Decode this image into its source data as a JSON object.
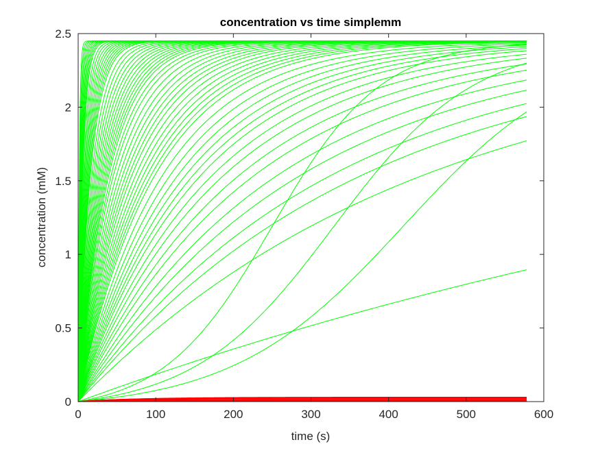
{
  "chart_data": {
    "type": "line",
    "title": "concentration vs time simplemm",
    "xlabel": "time (s)",
    "ylabel": "concentration (mM)",
    "xlim": [
      0,
      600
    ],
    "ylim": [
      0,
      2.5
    ],
    "x_ticks": [
      "0",
      "100",
      "200",
      "300",
      "400",
      "500",
      "600"
    ],
    "y_ticks": [
      "0",
      "0.5",
      "1",
      "1.5",
      "2",
      "2.5"
    ],
    "grid": false,
    "box": true,
    "t_end": 578,
    "green_plateau": 2.45,
    "green_time_constants_s": [
      1.5,
      2,
      2.5,
      3,
      3.5,
      4,
      4.5,
      5,
      5.5,
      6,
      7,
      8,
      9,
      10,
      11,
      12,
      13,
      14,
      15,
      16,
      18,
      20,
      22,
      24,
      26,
      28,
      30,
      32,
      34,
      36,
      38,
      40,
      43,
      46,
      50,
      54,
      58,
      62,
      66,
      70,
      75,
      80,
      85,
      90,
      95,
      100,
      110,
      120,
      130,
      140,
      150,
      160,
      175,
      190,
      210,
      230,
      260,
      290,
      330,
      370,
      450,
      1270
    ],
    "green_sigmoids": [
      {
        "t_half": 250,
        "width": 70
      },
      {
        "t_half": 330,
        "width": 90
      },
      {
        "t_half": 420,
        "width": 110
      }
    ],
    "red_plateaus": [
      0.03,
      0.025,
      0.02,
      0.015,
      0.01,
      0.007,
      0.004,
      0.002
    ],
    "red_time_constants_s": [
      80,
      60,
      45,
      35,
      25,
      15,
      10,
      5
    ],
    "colors": {
      "substrate_curves": "#00ff00",
      "product_curves": "#ff0000",
      "axes": "#262626"
    }
  }
}
